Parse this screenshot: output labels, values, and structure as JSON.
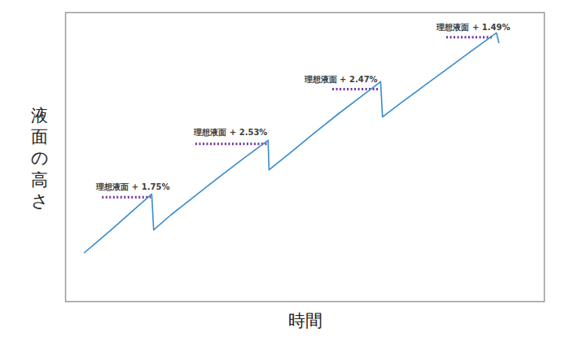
{
  "chart_data": {
    "type": "line",
    "x_label": "時間",
    "y_label": "液面の高さ",
    "xlim": [
      0,
      100
    ],
    "ylim": [
      0,
      100
    ],
    "xticks": [],
    "yticks": [],
    "tick_labels": false,
    "grid": false,
    "color": "#3a8ccc",
    "x": [
      3.9,
      6,
      10,
      14,
      18.0,
      18.4,
      22,
      27,
      32,
      37,
      42.3,
      42.5,
      47,
      52,
      57,
      62,
      65.8,
      66.2,
      70,
      75,
      80,
      85,
      90.0,
      90.5
    ],
    "values": [
      16.9,
      19.8,
      25.5,
      31.4,
      37.2,
      24.8,
      30.0,
      36.5,
      43.0,
      49.3,
      55.8,
      45.6,
      51.6,
      58.4,
      65.0,
      71.3,
      76.1,
      63.9,
      68.7,
      74.8,
      80.9,
      87.0,
      93.0,
      89.6
    ],
    "annotations": [
      {
        "text": "理想液面 + 1.75%",
        "x": 14.1,
        "y": 39.7,
        "line_x": [
          7.7,
          17.9
        ],
        "line_y": 36.1
      },
      {
        "text": "理想液面 + 2.53%",
        "x": 34.5,
        "y": 58.6,
        "line_x": [
          27.2,
          42.2
        ],
        "line_y": 54.6
      },
      {
        "text": "理想液面 + 2.47%",
        "x": 57.5,
        "y": 76.9,
        "line_x": [
          55.8,
          65.5
        ],
        "line_y": 73.5
      },
      {
        "text": "理想液面 + 1.49%",
        "x": 85.2,
        "y": 94.9,
        "line_x": [
          79.6,
          89.5
        ],
        "line_y": 91.5
      }
    ]
  }
}
